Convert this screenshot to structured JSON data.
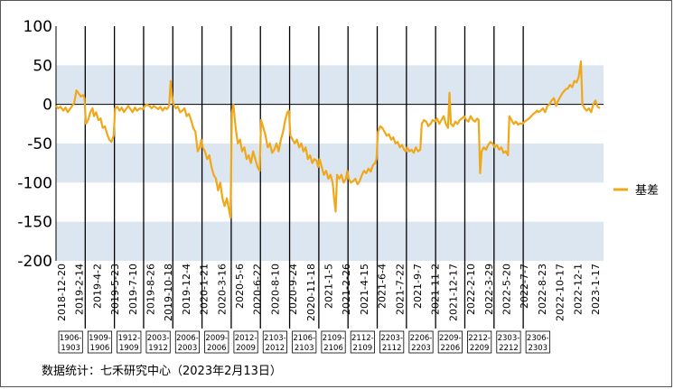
{
  "chart_data": {
    "type": "line",
    "title": "",
    "xlabel": "",
    "ylabel": "",
    "ylim": [
      -200,
      100
    ],
    "yticks": [
      100,
      50,
      0,
      -50,
      -100,
      -150,
      -200
    ],
    "shaded_bands": [
      [
        0,
        50
      ],
      [
        -50,
        -100
      ],
      [
        -150,
        -200
      ]
    ],
    "grid": false,
    "legend_position": "right",
    "xtick_labels": [
      "2018-12-20",
      "2019-2-14",
      "2019-4-2",
      "2019-5-23",
      "2019-7-10",
      "2019-8-26",
      "2019-10-18",
      "2019-12-4",
      "2020-1-21",
      "2020-3-16",
      "2020-5-6",
      "2020-6-22",
      "2020-8-10",
      "2020-9-24",
      "2020-11-18",
      "2021-1-5",
      "2021-2-26",
      "2021-4-15",
      "2021-6-4",
      "2021-7-22",
      "2021-9-7",
      "2021-11-2",
      "2021-12-17",
      "2022-2-10",
      "2022-3-29",
      "2022-5-20",
      "2022-7-7",
      "2022-8-23",
      "2022-10-17",
      "2022-12-1",
      "2023-1-17"
    ],
    "series": [
      {
        "name": "基差",
        "color": "#f0a81a",
        "values": [
          [
            0,
            -2
          ],
          [
            0.3,
            -5
          ],
          [
            0.6,
            -3
          ],
          [
            1.0,
            -8
          ],
          [
            1.3,
            -4
          ],
          [
            1.6,
            -10
          ],
          [
            1.9,
            -6
          ],
          [
            2.2,
            -2
          ],
          [
            2.5,
            2
          ],
          [
            2.8,
            18
          ],
          [
            3.1,
            14
          ],
          [
            3.4,
            10
          ],
          [
            3.7,
            12
          ],
          [
            3.9,
            8
          ],
          [
            4.1,
            -25
          ],
          [
            4.4,
            -20
          ],
          [
            4.7,
            -10
          ],
          [
            5.0,
            -5
          ],
          [
            5.2,
            -15
          ],
          [
            5.5,
            -10
          ],
          [
            5.8,
            -20
          ],
          [
            6.1,
            -18
          ],
          [
            6.4,
            -30
          ],
          [
            6.7,
            -28
          ],
          [
            7.0,
            -38
          ],
          [
            7.3,
            -45
          ],
          [
            7.6,
            -48
          ],
          [
            7.9,
            -40
          ],
          [
            8.1,
            -5
          ],
          [
            8.4,
            -3
          ],
          [
            8.7,
            -8
          ],
          [
            9.0,
            -4
          ],
          [
            9.3,
            -10
          ],
          [
            9.6,
            -6
          ],
          [
            9.9,
            -2
          ],
          [
            10.2,
            -6
          ],
          [
            10.5,
            -10
          ],
          [
            10.8,
            -4
          ],
          [
            11.1,
            -8
          ],
          [
            11.5,
            -5
          ],
          [
            11.9,
            -6
          ],
          [
            12.1,
            -3
          ],
          [
            12.4,
            0
          ],
          [
            12.8,
            -2
          ],
          [
            13.1,
            -5
          ],
          [
            13.4,
            -2
          ],
          [
            13.7,
            -4
          ],
          [
            14.0,
            -6
          ],
          [
            14.3,
            -3
          ],
          [
            14.6,
            -8
          ],
          [
            14.9,
            -4
          ],
          [
            15.2,
            -6
          ],
          [
            15.5,
            -2
          ],
          [
            15.7,
            30
          ],
          [
            15.9,
            10
          ],
          [
            16.1,
            0
          ],
          [
            16.4,
            -5
          ],
          [
            16.7,
            -3
          ],
          [
            17.0,
            -10
          ],
          [
            17.3,
            -8
          ],
          [
            17.6,
            -5
          ],
          [
            17.9,
            -15
          ],
          [
            18.2,
            -12
          ],
          [
            18.5,
            -20
          ],
          [
            18.8,
            -30
          ],
          [
            19.1,
            -35
          ],
          [
            19.4,
            -60
          ],
          [
            19.7,
            -55
          ],
          [
            19.9,
            -45
          ],
          [
            20.1,
            -55
          ],
          [
            20.4,
            -60
          ],
          [
            20.7,
            -70
          ],
          [
            21.0,
            -65
          ],
          [
            21.3,
            -80
          ],
          [
            21.6,
            -90
          ],
          [
            21.9,
            -95
          ],
          [
            22.2,
            -110
          ],
          [
            22.5,
            -100
          ],
          [
            22.8,
            -120
          ],
          [
            23.1,
            -130
          ],
          [
            23.4,
            -120
          ],
          [
            23.7,
            -135
          ],
          [
            23.9,
            -145
          ],
          [
            24.1,
            -10
          ],
          [
            24.3,
            0
          ],
          [
            24.6,
            -30
          ],
          [
            24.9,
            -50
          ],
          [
            25.2,
            -45
          ],
          [
            25.5,
            -60
          ],
          [
            25.8,
            -55
          ],
          [
            26.1,
            -70
          ],
          [
            26.4,
            -65
          ],
          [
            26.7,
            -75
          ],
          [
            27.0,
            -60
          ],
          [
            27.3,
            -70
          ],
          [
            27.6,
            -80
          ],
          [
            27.9,
            -85
          ],
          [
            28.1,
            -20
          ],
          [
            28.4,
            -30
          ],
          [
            28.7,
            -40
          ],
          [
            29.0,
            -55
          ],
          [
            29.3,
            -50
          ],
          [
            29.6,
            -62
          ],
          [
            29.9,
            -58
          ],
          [
            30.2,
            -50
          ],
          [
            30.5,
            -60
          ],
          [
            30.8,
            -45
          ],
          [
            31.1,
            -35
          ],
          [
            31.4,
            -20
          ],
          [
            31.7,
            -10
          ],
          [
            31.9,
            -8
          ],
          [
            32.1,
            -40
          ],
          [
            32.4,
            -45
          ],
          [
            32.7,
            -50
          ],
          [
            33.0,
            -45
          ],
          [
            33.3,
            -55
          ],
          [
            33.6,
            -50
          ],
          [
            33.9,
            -60
          ],
          [
            34.2,
            -55
          ],
          [
            34.5,
            -70
          ],
          [
            34.8,
            -65
          ],
          [
            35.1,
            -75
          ],
          [
            35.4,
            -70
          ],
          [
            35.7,
            -72
          ],
          [
            35.9,
            -80
          ],
          [
            36.1,
            -70
          ],
          [
            36.4,
            -80
          ],
          [
            36.7,
            -90
          ],
          [
            37.0,
            -85
          ],
          [
            37.3,
            -95
          ],
          [
            37.6,
            -90
          ],
          [
            37.9,
            -100
          ],
          [
            38.1,
            -120
          ],
          [
            38.3,
            -137
          ],
          [
            38.5,
            -90
          ],
          [
            38.8,
            -95
          ],
          [
            39.1,
            -90
          ],
          [
            39.4,
            -100
          ],
          [
            39.7,
            -95
          ],
          [
            39.9,
            -85
          ],
          [
            40.1,
            -95
          ],
          [
            40.4,
            -100
          ],
          [
            40.7,
            -98
          ],
          [
            41.0,
            -95
          ],
          [
            41.3,
            -102
          ],
          [
            41.6,
            -98
          ],
          [
            41.9,
            -90
          ],
          [
            42.2,
            -85
          ],
          [
            42.5,
            -88
          ],
          [
            42.8,
            -82
          ],
          [
            43.1,
            -86
          ],
          [
            43.4,
            -78
          ],
          [
            43.7,
            -75
          ],
          [
            43.9,
            -70
          ],
          [
            44.1,
            -35
          ],
          [
            44.4,
            -28
          ],
          [
            44.7,
            -30
          ],
          [
            45.0,
            -35
          ],
          [
            45.3,
            -40
          ],
          [
            45.6,
            -38
          ],
          [
            45.9,
            -45
          ],
          [
            46.2,
            -42
          ],
          [
            46.5,
            -50
          ],
          [
            46.8,
            -48
          ],
          [
            47.1,
            -55
          ],
          [
            47.4,
            -52
          ],
          [
            47.7,
            -58
          ],
          [
            47.9,
            -60
          ],
          [
            48.1,
            -55
          ],
          [
            48.4,
            -60
          ],
          [
            48.7,
            -58
          ],
          [
            49.0,
            -62
          ],
          [
            49.3,
            -55
          ],
          [
            49.6,
            -60
          ],
          [
            49.9,
            -58
          ],
          [
            50.1,
            -25
          ],
          [
            50.4,
            -20
          ],
          [
            50.7,
            -22
          ],
          [
            51.0,
            -28
          ],
          [
            51.3,
            -25
          ],
          [
            51.6,
            -20
          ],
          [
            51.9,
            -22
          ],
          [
            52.2,
            -18
          ],
          [
            52.5,
            -25
          ],
          [
            52.8,
            -20
          ],
          [
            53.1,
            -15
          ],
          [
            53.4,
            -25
          ],
          [
            53.7,
            -30
          ],
          [
            53.9,
            15
          ],
          [
            54.1,
            -25
          ],
          [
            54.4,
            -28
          ],
          [
            54.7,
            -22
          ],
          [
            55.0,
            -25
          ],
          [
            55.3,
            -20
          ],
          [
            55.6,
            -18
          ],
          [
            55.9,
            -15
          ],
          [
            56.2,
            -20
          ],
          [
            56.5,
            -22
          ],
          [
            56.8,
            -15
          ],
          [
            57.1,
            -20
          ],
          [
            57.4,
            -22
          ],
          [
            57.7,
            -18
          ],
          [
            57.9,
            -20
          ],
          [
            58.1,
            -88
          ],
          [
            58.3,
            -60
          ],
          [
            58.6,
            -55
          ],
          [
            58.9,
            -58
          ],
          [
            59.2,
            -52
          ],
          [
            59.5,
            -48
          ],
          [
            59.8,
            -50
          ],
          [
            60.1,
            -55
          ],
          [
            60.4,
            -52
          ],
          [
            60.7,
            -58
          ],
          [
            61.0,
            -55
          ],
          [
            61.3,
            -62
          ],
          [
            61.6,
            -60
          ],
          [
            61.9,
            -65
          ],
          [
            62.1,
            -15
          ],
          [
            62.4,
            -20
          ],
          [
            62.7,
            -25
          ],
          [
            63.0,
            -22
          ],
          [
            63.3,
            -26
          ],
          [
            63.6,
            -24
          ],
          [
            63.9,
            -25
          ],
          [
            64.2,
            -22
          ],
          [
            64.5,
            -20
          ],
          [
            64.8,
            -18
          ],
          [
            65.1,
            -15
          ],
          [
            65.4,
            -12
          ],
          [
            65.7,
            -10
          ],
          [
            65.9,
            -8
          ],
          [
            66.1,
            -10
          ],
          [
            66.4,
            -8
          ],
          [
            66.7,
            -5
          ],
          [
            67.0,
            -10
          ],
          [
            67.3,
            -2
          ],
          [
            67.6,
            0
          ],
          [
            67.9,
            5
          ],
          [
            68.2,
            8
          ],
          [
            68.5,
            -2
          ],
          [
            68.8,
            5
          ],
          [
            69.1,
            10
          ],
          [
            69.4,
            15
          ],
          [
            69.7,
            18
          ],
          [
            69.9,
            20
          ],
          [
            70.1,
            20
          ],
          [
            70.4,
            25
          ],
          [
            70.7,
            22
          ],
          [
            71.0,
            30
          ],
          [
            71.3,
            28
          ],
          [
            71.6,
            35
          ],
          [
            71.9,
            55
          ],
          [
            72.1,
            0
          ],
          [
            72.4,
            -5
          ],
          [
            72.7,
            -8
          ],
          [
            73.0,
            -5
          ],
          [
            73.3,
            -10
          ],
          [
            73.6,
            0
          ],
          [
            73.9,
            5
          ],
          [
            74.2,
            -3
          ],
          [
            74.5,
            -5
          ]
        ]
      }
    ],
    "contract_windows": [
      {
        "label": "1906-1903",
        "start": 0,
        "end": 4
      },
      {
        "label": "1909-1906",
        "start": 4,
        "end": 8
      },
      {
        "label": "1912-1909",
        "start": 8,
        "end": 12
      },
      {
        "label": "2003-1912",
        "start": 12,
        "end": 16
      },
      {
        "label": "2006-2003",
        "start": 16,
        "end": 20
      },
      {
        "label": "2009-2006",
        "start": 20,
        "end": 24
      },
      {
        "label": "2012-2009",
        "start": 24,
        "end": 28
      },
      {
        "label": "2103-2012",
        "start": 28,
        "end": 32
      },
      {
        "label": "2106-2103",
        "start": 32,
        "end": 36
      },
      {
        "label": "2109-2106",
        "start": 36,
        "end": 40
      },
      {
        "label": "2112-2109",
        "start": 40,
        "end": 44
      },
      {
        "label": "2203-2112",
        "start": 44,
        "end": 48
      },
      {
        "label": "2206-2203",
        "start": 48,
        "end": 52
      },
      {
        "label": "2209-2206",
        "start": 52,
        "end": 56
      },
      {
        "label": "2212-2209",
        "start": 56,
        "end": 60
      },
      {
        "label": "2303-2212",
        "start": 60,
        "end": 64
      },
      {
        "label": "2306-2303",
        "start": 64,
        "end": 68
      }
    ]
  },
  "source_note": "数据统计：七禾研究中心（2023年2月13日）"
}
